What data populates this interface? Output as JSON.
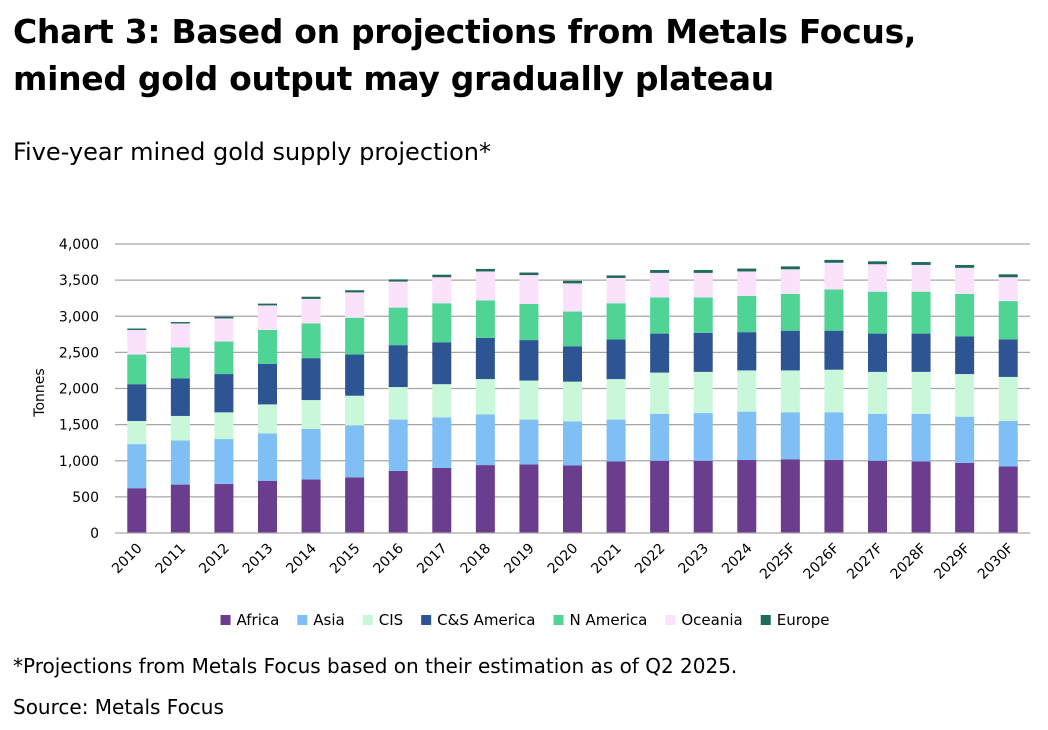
{
  "header": {
    "title": "Chart 3: Based on projections from Metals Focus, mined gold output may gradually plateau",
    "subtitle": "Five-year mined gold supply projection*"
  },
  "footer": {
    "footnote": "*Projections from Metals Focus based on their estimation as of Q2 2025.",
    "source": "Source: Metals Focus"
  },
  "chart_data": {
    "type": "bar",
    "stacked": true,
    "title": "Five-year mined gold supply projection*",
    "xlabel": "",
    "ylabel": "Tonnes",
    "ylim": [
      0,
      4000
    ],
    "yticks": [
      0,
      500,
      1000,
      1500,
      2000,
      2500,
      3000,
      3500,
      4000
    ],
    "ytick_labels": [
      "0",
      "500",
      "1,000",
      "1,500",
      "2,000",
      "2,500",
      "3,000",
      "3,500",
      "4,000"
    ],
    "grid": true,
    "legend_position": "bottom",
    "categories": [
      "2010",
      "2011",
      "2012",
      "2013",
      "2014",
      "2015",
      "2016",
      "2017",
      "2018",
      "2019",
      "2020",
      "2021",
      "2022",
      "2023",
      "2024",
      "2025F",
      "2026F",
      "2027F",
      "2028F",
      "2029F",
      "2030F"
    ],
    "series": [
      {
        "name": "Africa",
        "color": "#6a3d8f",
        "values": [
          620,
          670,
          680,
          720,
          740,
          770,
          860,
          900,
          940,
          950,
          935,
          990,
          1000,
          1000,
          1010,
          1020,
          1010,
          1000,
          990,
          970,
          920
        ]
      },
      {
        "name": "Asia",
        "color": "#7fbff5",
        "values": [
          610,
          610,
          620,
          660,
          700,
          720,
          710,
          700,
          700,
          620,
          610,
          580,
          650,
          660,
          670,
          650,
          660,
          650,
          660,
          640,
          630
        ]
      },
      {
        "name": "CIS",
        "color": "#c9f7da",
        "values": [
          320,
          340,
          370,
          400,
          400,
          410,
          450,
          460,
          490,
          540,
          550,
          560,
          570,
          570,
          570,
          580,
          590,
          580,
          580,
          590,
          610
        ]
      },
      {
        "name": "C&S America",
        "color": "#2d5594",
        "values": [
          510,
          520,
          530,
          560,
          580,
          570,
          580,
          580,
          570,
          560,
          490,
          550,
          540,
          540,
          530,
          550,
          540,
          530,
          530,
          520,
          520
        ]
      },
      {
        "name": "N America",
        "color": "#4fd495",
        "values": [
          410,
          430,
          450,
          470,
          480,
          510,
          520,
          540,
          520,
          500,
          480,
          500,
          500,
          490,
          500,
          510,
          570,
          580,
          580,
          590,
          530
        ]
      },
      {
        "name": "Oceania",
        "color": "#fbe2fb",
        "values": [
          340,
          330,
          320,
          340,
          340,
          350,
          360,
          360,
          400,
          400,
          390,
          350,
          340,
          340,
          340,
          340,
          370,
          380,
          370,
          360,
          330
        ]
      },
      {
        "name": "Europe",
        "color": "#1f6b5a",
        "values": [
          20,
          20,
          25,
          25,
          30,
          30,
          30,
          35,
          35,
          35,
          35,
          35,
          40,
          40,
          40,
          40,
          40,
          40,
          40,
          40,
          40
        ]
      }
    ]
  }
}
